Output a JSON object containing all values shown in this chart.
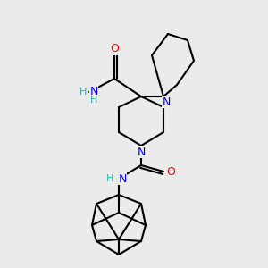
{
  "background_color": "#ebebeb",
  "atom_colors": {
    "N": "#0000ff",
    "O": "#ff0000",
    "C": "#000000",
    "H": "#20b2aa"
  },
  "bond_color": "#000000",
  "bond_width": 1.5,
  "figsize": [
    3.0,
    3.0
  ],
  "dpi": 100
}
